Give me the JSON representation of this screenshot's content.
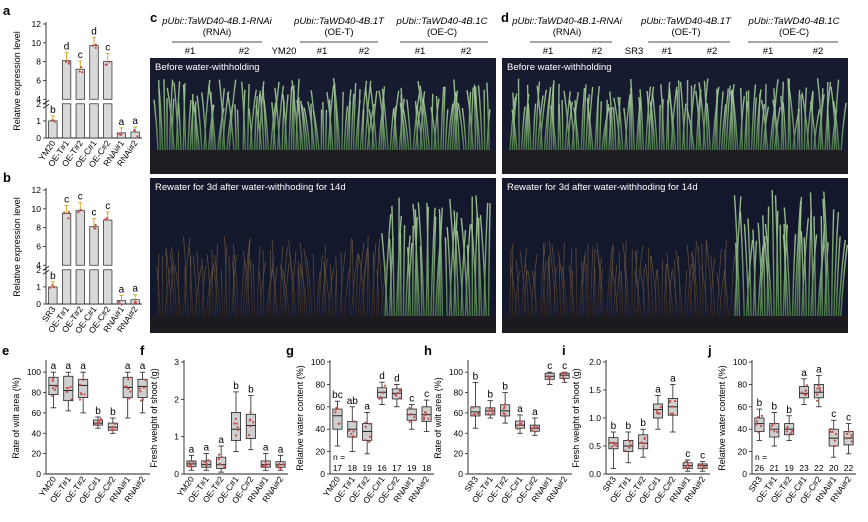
{
  "panels": {
    "a": {
      "letter": "a",
      "ylabel": "Relative expression level"
    },
    "b": {
      "letter": "b",
      "ylabel": "Relative expression level"
    },
    "c": {
      "letter": "c",
      "headers": [
        {
          "line1": "pUbi::TaWD40-4B.1-RNAi",
          "line2": "(RNAi)"
        },
        {
          "line1": "pUbi::TaWD40-4B.1T",
          "line2": "(OE-T)"
        },
        {
          "line1": "pUbi::TaWD40-4B.1C",
          "line2": "(OE-C)"
        }
      ],
      "lines": [
        "#1",
        "#2",
        "YM20",
        "#1",
        "#2",
        "#1",
        "#2"
      ],
      "photo_top_label": "Before water-withholding",
      "photo_bottom_label": "Rewater for 3d after water-withhoding for 14d"
    },
    "d": {
      "letter": "d",
      "headers": [
        {
          "line1": "pUbi::TaWD40-4B.1-RNAi",
          "line2": "(RNAi)"
        },
        {
          "line1": "pUbi::TaWD40-4B.1T",
          "line2": "(OE-T)"
        },
        {
          "line1": "pUbi::TaWD40-4B.1C",
          "line2": "(OE-C)"
        }
      ],
      "lines": [
        "#1",
        "#2",
        "SR3",
        "#1",
        "#2",
        "#1",
        "#2"
      ],
      "photo_top_label": "Before water-withholding",
      "photo_bottom_label": "Rewater for 3d after water-withhoding for 14d"
    }
  },
  "chart_data": [
    {
      "id": "a",
      "type": "bar",
      "ylabel": "Relative expression level",
      "categories": [
        "YM20",
        "OE-T#1",
        "OE-T#2",
        "OE-C#1",
        "OE-C#2",
        "RNAi#1",
        "RNAi#2"
      ],
      "values": [
        1.0,
        8.1,
        7.2,
        9.7,
        8.0,
        0.3,
        0.35
      ],
      "letters": [
        "b",
        "d",
        "c",
        "d",
        "c",
        "a",
        "a"
      ],
      "yticks": [
        "0",
        "1",
        "2",
        "4",
        "6",
        "8",
        "10",
        "12"
      ],
      "axis_break": true
    },
    {
      "id": "b",
      "type": "bar",
      "ylabel": "Relative expression level",
      "categories": [
        "SR3",
        "OE-T#1",
        "OE-T#2",
        "OE-C#1",
        "OE-C#2",
        "RNAi#1",
        "RNAi#2"
      ],
      "values": [
        1.0,
        9.5,
        9.8,
        8.1,
        8.8,
        0.2,
        0.25
      ],
      "letters": [
        "b",
        "c",
        "c",
        "c",
        "c",
        "a",
        "a"
      ],
      "yticks": [
        "0",
        "1",
        "2",
        "4",
        "6",
        "8",
        "10",
        "12"
      ],
      "axis_break": true
    },
    {
      "id": "e",
      "type": "box",
      "ylabel": "Rate of wilt area (%)",
      "ylim": [
        0,
        110
      ],
      "yticks": [
        "0",
        "20",
        "40",
        "60",
        "80",
        "100"
      ],
      "categories": [
        "YM20",
        "OE-T#1",
        "OE-T#2",
        "OE-C#1",
        "OE-C#2",
        "RNAi#1",
        "RNAi#2"
      ],
      "boxes": [
        [
          65,
          78,
          87,
          95,
          100
        ],
        [
          62,
          72,
          82,
          96,
          100
        ],
        [
          60,
          75,
          87,
          93,
          100
        ],
        [
          45,
          48,
          50,
          53,
          56
        ],
        [
          40,
          43,
          46,
          50,
          55
        ],
        [
          55,
          75,
          85,
          95,
          100
        ],
        [
          60,
          75,
          86,
          93,
          100
        ]
      ],
      "letters": [
        "a",
        "a",
        "a",
        "b",
        "b",
        "a",
        "a"
      ]
    },
    {
      "id": "f",
      "type": "box",
      "ylabel": "Fresh weight of shoot (g)",
      "ylim": [
        0,
        3
      ],
      "yticks": [
        "0",
        "1",
        "2",
        "3"
      ],
      "categories": [
        "YM20",
        "OE-T#1",
        "OE-T#2",
        "OE-C#1",
        "OE-C#2",
        "RNAi#1",
        "RNAi#2"
      ],
      "boxes": [
        [
          0.1,
          0.2,
          0.27,
          0.35,
          0.5
        ],
        [
          0.1,
          0.18,
          0.25,
          0.35,
          0.55
        ],
        [
          0.05,
          0.15,
          0.25,
          0.45,
          0.75
        ],
        [
          0.6,
          0.9,
          1.2,
          1.65,
          2.2
        ],
        [
          0.65,
          0.95,
          1.3,
          1.6,
          2.1
        ],
        [
          0.1,
          0.18,
          0.25,
          0.35,
          0.55
        ],
        [
          0.1,
          0.18,
          0.25,
          0.33,
          0.5
        ]
      ],
      "letters": [
        "a",
        "a",
        "a",
        "b",
        "b",
        "a",
        "a"
      ]
    },
    {
      "id": "g",
      "type": "box",
      "ylabel": "Relative water content (%)",
      "ylim": [
        0,
        100
      ],
      "yticks": [
        "0",
        "20",
        "40",
        "60",
        "80",
        "100"
      ],
      "categories": [
        "YM20",
        "OE-T#1",
        "OE-T#2",
        "OE-C#1",
        "OE-C#2",
        "RNAi#1",
        "RNAi#2"
      ],
      "boxes": [
        [
          25,
          40,
          52,
          58,
          65
        ],
        [
          20,
          33,
          40,
          47,
          60
        ],
        [
          18,
          30,
          38,
          45,
          55
        ],
        [
          62,
          68,
          73,
          77,
          82
        ],
        [
          60,
          67,
          72,
          76,
          80
        ],
        [
          40,
          48,
          53,
          58,
          62
        ],
        [
          38,
          47,
          53,
          60,
          66
        ]
      ],
      "letters": [
        "bc",
        "ab",
        "a",
        "d",
        "d",
        "c",
        "c"
      ],
      "n_label": "n =",
      "n": [
        "17",
        "18",
        "19",
        "16",
        "17",
        "19",
        "18"
      ]
    },
    {
      "id": "h",
      "type": "box",
      "ylabel": "Rate of wilt area (%)",
      "ylim": [
        0,
        110
      ],
      "yticks": [
        "0",
        "20",
        "40",
        "60",
        "80",
        "100"
      ],
      "categories": [
        "SR3",
        "OE-T#1",
        "OE-T#2",
        "OE-C#1",
        "OE-C#2",
        "RNAi#1",
        "RNAi#2"
      ],
      "boxes": [
        [
          45,
          57,
          61,
          66,
          90
        ],
        [
          55,
          58,
          62,
          65,
          72
        ],
        [
          50,
          57,
          62,
          68,
          80
        ],
        [
          40,
          45,
          48,
          52,
          58
        ],
        [
          38,
          42,
          45,
          48,
          55
        ],
        [
          88,
          93,
          96,
          99,
          100
        ],
        [
          90,
          94,
          97,
          99,
          100
        ]
      ],
      "letters": [
        "b",
        "b",
        "b",
        "a",
        "a",
        "c",
        "c"
      ]
    },
    {
      "id": "i",
      "type": "box",
      "ylabel": "Fresh weight of shoot (g)",
      "ylim": [
        0,
        2
      ],
      "yticks": [
        "0.0",
        "0.5",
        "1.0",
        "1.5",
        "2.0"
      ],
      "categories": [
        "SR3",
        "OE-T#1",
        "OE-T#2",
        "OE-C#1",
        "OE-C#2",
        "RNAi#1",
        "RNAi#2"
      ],
      "boxes": [
        [
          0.1,
          0.45,
          0.55,
          0.65,
          0.75
        ],
        [
          0.2,
          0.4,
          0.5,
          0.6,
          0.75
        ],
        [
          0.3,
          0.45,
          0.55,
          0.7,
          0.8
        ],
        [
          0.8,
          1.0,
          1.15,
          1.25,
          1.4
        ],
        [
          0.75,
          1.05,
          1.2,
          1.35,
          1.6
        ],
        [
          0.05,
          0.1,
          0.15,
          0.2,
          0.25
        ],
        [
          0.05,
          0.1,
          0.15,
          0.18,
          0.22
        ]
      ],
      "letters": [
        "b",
        "b",
        "b",
        "a",
        "a",
        "c",
        "c"
      ]
    },
    {
      "id": "j",
      "type": "box",
      "ylabel": "Relative water content (%)",
      "ylim": [
        0,
        100
      ],
      "yticks": [
        "0",
        "20",
        "40",
        "60",
        "80",
        "100"
      ],
      "categories": [
        "SR3",
        "OE-T#1",
        "OE-T#2",
        "OE-C#1",
        "OE-C#2",
        "RNAi#1",
        "RNAi#2"
      ],
      "boxes": [
        [
          30,
          38,
          45,
          50,
          58
        ],
        [
          25,
          33,
          40,
          45,
          55
        ],
        [
          30,
          35,
          40,
          45,
          52
        ],
        [
          62,
          68,
          72,
          78,
          85
        ],
        [
          60,
          68,
          73,
          80,
          88
        ],
        [
          15,
          25,
          32,
          40,
          48
        ],
        [
          18,
          26,
          32,
          38,
          45
        ]
      ],
      "letters": [
        "b",
        "b",
        "b",
        "a",
        "a",
        "c",
        "c"
      ],
      "n_label": "n =",
      "n": [
        "26",
        "21",
        "19",
        "23",
        "22",
        "20",
        "22"
      ]
    }
  ],
  "colors": {
    "bar_fill": "#d9d9d9",
    "box_fill": "#cfcfcf",
    "outline": "#222222",
    "points": "#c0504d",
    "error": "#d4a017",
    "photo_bg": "#14182c",
    "plant_green": "#7fb07a",
    "plant_dry": "#8a6c4e"
  }
}
